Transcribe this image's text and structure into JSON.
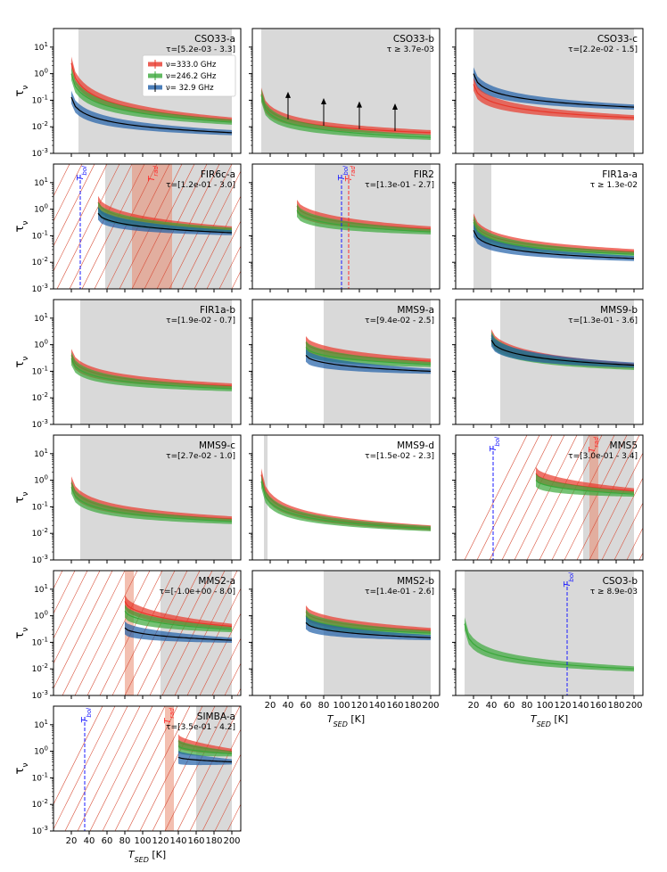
{
  "figure": {
    "ylabel": "τ",
    "ylabel_sub": "ν",
    "xlabel": "T",
    "xlabel_sub": "SED",
    "xlabel_unit": "[K]",
    "xticks": [
      "20",
      "40",
      "60",
      "80",
      "100",
      "120",
      "140",
      "160",
      "180",
      "200"
    ],
    "yticks": [
      {
        "base": "10",
        "exp": "1"
      },
      {
        "base": "10",
        "exp": "0"
      },
      {
        "base": "10",
        "exp": "-1"
      },
      {
        "base": "10",
        "exp": "-2"
      },
      {
        "base": "10",
        "exp": "-3"
      }
    ],
    "legend": [
      "ν=333.0 GHz",
      "ν=246.2 GHz",
      "ν= 32.9 GHz"
    ],
    "marker_labels": {
      "tbol": "T",
      "tbol_sub": "bol",
      "trad": "T",
      "trad_sub": "rad"
    },
    "colors": {
      "red": "#e8372a",
      "green": "#3aa83a",
      "blue": "#1f5fa8",
      "shade": "#d9d9d9",
      "orange": "#e98a6f",
      "tbol": "#1a1aff",
      "trad": "#ff2a2a"
    }
  },
  "chart_data": [
    {
      "type": "line",
      "title": "CSO33-a",
      "tau": "τ=[5.2e-03 - 3.3]",
      "ylim": [
        0.001,
        50
      ],
      "xlim": [
        0,
        210
      ],
      "shade": [
        28,
        200
      ],
      "series": [
        {
          "name": "333.0 GHz",
          "color": "red",
          "x_start": 20,
          "y_start": 2.5,
          "y_end": 0.018
        },
        {
          "name": "246.2 GHz",
          "color": "green",
          "x_start": 20,
          "y_start": 1.0,
          "y_end": 0.015
        },
        {
          "name": "32.9 GHz",
          "color": "blue",
          "x_start": 20,
          "y_start": 0.13,
          "y_end": 0.006
        }
      ],
      "legend": true
    },
    {
      "type": "line",
      "title": "CSO33-b",
      "tau": "τ ≥ 3.7e-03",
      "ylim": [
        0.001,
        50
      ],
      "xlim": [
        0,
        210
      ],
      "shade": [
        10,
        200
      ],
      "series": [
        {
          "name": "333.0 GHz",
          "color": "red",
          "x_start": 10,
          "y_start": 0.17,
          "y_end": 0.006
        },
        {
          "name": "246.2 GHz",
          "color": "green",
          "x_start": 10,
          "y_start": 0.15,
          "y_end": 0.004
        }
      ],
      "arrows": [
        40,
        80,
        120,
        160
      ]
    },
    {
      "type": "line",
      "title": "CSO33-c",
      "tau": "τ=[2.2e-02 - 1.5]",
      "ylim": [
        0.001,
        50
      ],
      "xlim": [
        0,
        210
      ],
      "shade": [
        20,
        200
      ],
      "series": [
        {
          "name": "32.9 GHz",
          "color": "blue",
          "x_start": 20,
          "y_start": 1.0,
          "y_end": 0.055
        },
        {
          "name": "333.0 GHz",
          "color": "red",
          "x_start": 20,
          "y_start": 0.4,
          "y_end": 0.022
        }
      ]
    },
    {
      "type": "line",
      "title": "FIR6c-a",
      "tau": "τ=[1.2e-01 - 3.0]",
      "ylim": [
        0.001,
        50
      ],
      "xlim": [
        0,
        210
      ],
      "shade": [
        58,
        200
      ],
      "orange_band": [
        88,
        133
      ],
      "tbol": 30,
      "trad": 110,
      "series": [
        {
          "name": "333.0 GHz",
          "color": "red",
          "x_start": 50,
          "y_start": 1.8,
          "y_end": 0.18
        },
        {
          "name": "246.2 GHz",
          "color": "green",
          "x_start": 50,
          "y_start": 1.1,
          "y_end": 0.16
        },
        {
          "name": "32.9 GHz",
          "color": "blue",
          "x_start": 50,
          "y_start": 0.7,
          "y_end": 0.13
        }
      ]
    },
    {
      "type": "line",
      "title": "FIR2",
      "tau": "τ=[1.3e-01 - 2.7]",
      "ylim": [
        0.001,
        50
      ],
      "xlim": [
        0,
        210
      ],
      "shade": [
        70,
        200
      ],
      "tbol_line": 100,
      "trad_line": 108,
      "series": [
        {
          "name": "333.0 GHz",
          "color": "red",
          "x_start": 50,
          "y_start": 1.3,
          "y_end": 0.18
        },
        {
          "name": "246.2 GHz",
          "color": "green",
          "x_start": 50,
          "y_start": 0.9,
          "y_end": 0.14
        }
      ]
    },
    {
      "type": "line",
      "title": "FIR1a-a",
      "tau": "τ ≥ 1.3e-02",
      "ylim": [
        0.001,
        50
      ],
      "xlim": [
        0,
        210
      ],
      "shade": [
        20,
        40
      ],
      "series": [
        {
          "name": "333.0 GHz",
          "color": "red",
          "x_start": 20,
          "y_start": 0.4,
          "y_end": 0.025
        },
        {
          "name": "246.2 GHz",
          "color": "green",
          "x_start": 20,
          "y_start": 0.32,
          "y_end": 0.02
        },
        {
          "name": "32.9 GHz",
          "color": "blue",
          "x_start": 20,
          "y_start": 0.16,
          "y_end": 0.014
        }
      ]
    },
    {
      "type": "line",
      "title": "FIR1a-b",
      "tau": "τ=[1.9e-02 - 0.7]",
      "ylim": [
        0.001,
        50
      ],
      "xlim": [
        0,
        210
      ],
      "shade": [
        30,
        200
      ],
      "series": [
        {
          "name": "333.0 GHz",
          "color": "red",
          "x_start": 20,
          "y_start": 0.4,
          "y_end": 0.028
        },
        {
          "name": "246.2 GHz",
          "color": "green",
          "x_start": 20,
          "y_start": 0.3,
          "y_end": 0.022
        }
      ]
    },
    {
      "type": "line",
      "title": "MMS9-a",
      "tau": "τ=[9.4e-02 - 2.5]",
      "ylim": [
        0.001,
        50
      ],
      "xlim": [
        0,
        210
      ],
      "shade": [
        80,
        200
      ],
      "series": [
        {
          "name": "333.0 GHz",
          "color": "red",
          "x_start": 60,
          "y_start": 1.2,
          "y_end": 0.24
        },
        {
          "name": "246.2 GHz",
          "color": "green",
          "x_start": 60,
          "y_start": 0.8,
          "y_end": 0.18
        },
        {
          "name": "32.9 GHz",
          "color": "blue",
          "x_start": 60,
          "y_start": 0.4,
          "y_end": 0.1
        }
      ]
    },
    {
      "type": "line",
      "title": "MMS9-b",
      "tau": "τ=[1.3e-01 - 3.6]",
      "ylim": [
        0.001,
        50
      ],
      "xlim": [
        0,
        210
      ],
      "shade": [
        50,
        200
      ],
      "series": [
        {
          "name": "333.0 GHz",
          "color": "red",
          "x_start": 40,
          "y_start": 2.2,
          "y_end": 0.16
        },
        {
          "name": "246.2 GHz",
          "color": "green",
          "x_start": 40,
          "y_start": 1.8,
          "y_end": 0.14
        },
        {
          "name": "32.9 GHz",
          "color": "blue",
          "x_start": 40,
          "y_start": 1.5,
          "y_end": 0.17
        }
      ]
    },
    {
      "type": "line",
      "title": "MMS9-c",
      "tau": "τ=[2.7e-02 - 1.0]",
      "ylim": [
        0.001,
        50
      ],
      "xlim": [
        0,
        210
      ],
      "shade": [
        30,
        200
      ],
      "series": [
        {
          "name": "333.0 GHz",
          "color": "red",
          "x_start": 20,
          "y_start": 0.8,
          "y_end": 0.035
        },
        {
          "name": "246.2 GHz",
          "color": "green",
          "x_start": 20,
          "y_start": 0.55,
          "y_end": 0.028
        }
      ]
    },
    {
      "type": "line",
      "title": "MMS9-d",
      "tau": "τ=[1.5e-02 - 2.3]",
      "ylim": [
        0.001,
        50
      ],
      "xlim": [
        0,
        210
      ],
      "shade": [
        13,
        17
      ],
      "series": [
        {
          "name": "333.0 GHz",
          "color": "red",
          "x_start": 10,
          "y_start": 1.6,
          "y_end": 0.016
        },
        {
          "name": "246.2 GHz",
          "color": "green",
          "x_start": 10,
          "y_start": 0.9,
          "y_end": 0.015
        }
      ]
    },
    {
      "type": "line",
      "title": "MMS5",
      "tau": "τ=[3.0e-01 - 3.4]",
      "ylim": [
        0.001,
        50
      ],
      "xlim": [
        0,
        210
      ],
      "shade": [
        143,
        200
      ],
      "orange_band": [
        150,
        160
      ],
      "tbol": 42,
      "trad": 153,
      "series": [
        {
          "name": "333.0 GHz",
          "color": "red",
          "x_start": 90,
          "y_start": 1.8,
          "y_end": 0.4
        },
        {
          "name": "246.2 GHz",
          "color": "green",
          "x_start": 90,
          "y_start": 1.0,
          "y_end": 0.3
        }
      ]
    },
    {
      "type": "line",
      "title": "MMS2-a",
      "tau": "τ=[-1.0e+00 - 8.0]",
      "ylim": [
        0.001,
        50
      ],
      "xlim": [
        0,
        210
      ],
      "shade": [
        120,
        200
      ],
      "orange_band": [
        80,
        90
      ],
      "series": [
        {
          "name": "333.0 GHz",
          "color": "red",
          "x_start": 80,
          "y_start": 3.5,
          "y_end": 0.4
        },
        {
          "name": "246.2 GHz",
          "color": "green",
          "x_start": 80,
          "y_start": 1.5,
          "y_end": 0.3
        },
        {
          "name": "32.9 GHz",
          "color": "blue",
          "x_start": 80,
          "y_start": 0.35,
          "y_end": 0.12
        }
      ]
    },
    {
      "type": "line",
      "title": "MMS2-b",
      "tau": "τ=[1.4e-01 - 2.6]",
      "ylim": [
        0.001,
        50
      ],
      "xlim": [
        0,
        210
      ],
      "shade": [
        80,
        200
      ],
      "series": [
        {
          "name": "333.0 GHz",
          "color": "red",
          "x_start": 60,
          "y_start": 1.4,
          "y_end": 0.28
        },
        {
          "name": "246.2 GHz",
          "color": "green",
          "x_start": 60,
          "y_start": 1.0,
          "y_end": 0.22
        },
        {
          "name": "32.9 GHz",
          "color": "blue",
          "x_start": 60,
          "y_start": 0.55,
          "y_end": 0.15
        }
      ]
    },
    {
      "type": "line",
      "title": "CSO3-b",
      "tau": "τ ≥ 8.9e-03",
      "ylim": [
        0.001,
        50
      ],
      "xlim": [
        0,
        210
      ],
      "shade": [
        10,
        200
      ],
      "tbol": 125,
      "series": [
        {
          "name": "246.2 GHz",
          "color": "green",
          "x_start": 10,
          "y_start": 0.5,
          "y_end": 0.01
        }
      ]
    },
    {
      "type": "line",
      "title": "SIMBA-a",
      "tau": "τ=[3.5e-01 - 4.2]",
      "ylim": [
        0.001,
        50
      ],
      "xlim": [
        0,
        210
      ],
      "shade": [
        160,
        200
      ],
      "orange_band": [
        125,
        135
      ],
      "tbol": 35,
      "trad": 128,
      "series": [
        {
          "name": "333.0 GHz",
          "color": "red",
          "x_start": 140,
          "y_start": 2.5,
          "y_end": 1.0
        },
        {
          "name": "246.2 GHz",
          "color": "green",
          "x_start": 140,
          "y_start": 1.6,
          "y_end": 0.8
        },
        {
          "name": "32.9 GHz",
          "color": "blue",
          "x_start": 140,
          "y_start": 0.6,
          "y_end": 0.4
        }
      ]
    }
  ]
}
